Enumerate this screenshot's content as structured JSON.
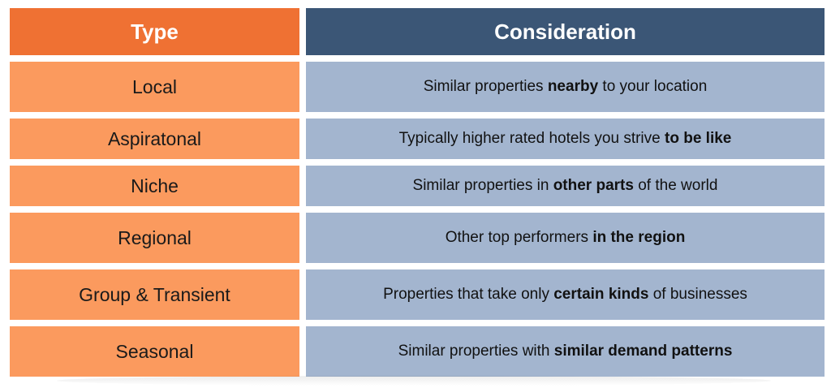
{
  "header": {
    "type": "Type",
    "consideration": "Consideration"
  },
  "rows": [
    {
      "type": "Local",
      "pre": "Similar properties ",
      "bold": "nearby",
      "post": " to your location"
    },
    {
      "type": "Aspiratonal",
      "pre": "Typically higher rated hotels you strive ",
      "bold": "to be like",
      "post": ""
    },
    {
      "type": "Niche",
      "pre": "Similar properties in ",
      "bold": "other parts",
      "post": " of the world"
    },
    {
      "type": "Regional",
      "pre": "Other top performers ",
      "bold": "in the region",
      "post": ""
    },
    {
      "type": "Group & Transient",
      "pre": "Properties that take only ",
      "bold": "certain kinds",
      "post": " of businesses"
    },
    {
      "type": "Seasonal",
      "pre": "Similar properties with ",
      "bold": "similar demand patterns",
      "post": ""
    }
  ],
  "colors": {
    "type_header": "#ef7133",
    "consideration_header": "#3b5676",
    "type_cell": "#fb9a5e",
    "consideration_cell": "#a3b5cf"
  }
}
